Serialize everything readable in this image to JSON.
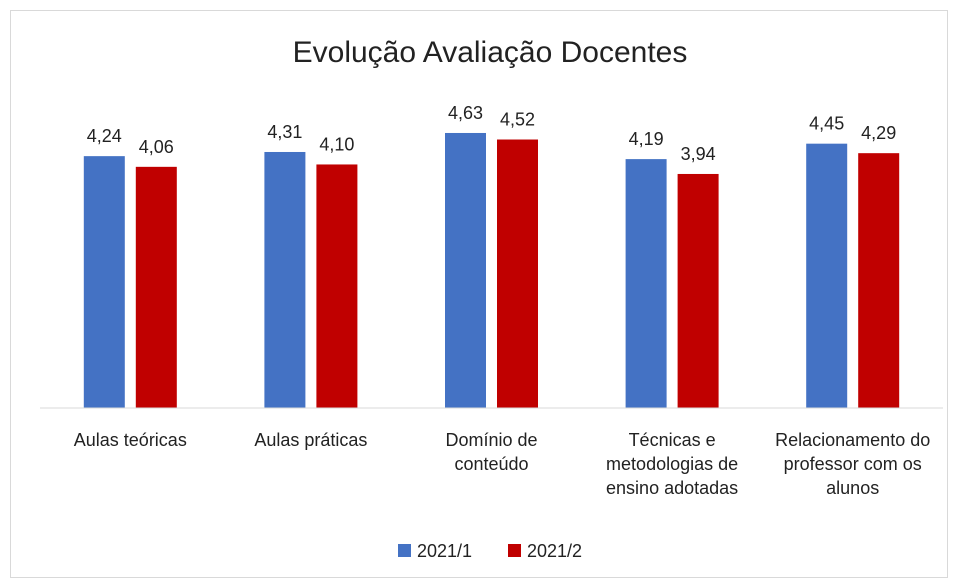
{
  "chart_data": {
    "type": "bar",
    "title": "Evolução Avaliação Docentes",
    "categories": [
      "Aulas teóricas",
      "Aulas práticas",
      "Domínio de conteúdo",
      "Técnicas e metodologias de ensino adotadas",
      "Relacionamento do professor com os alunos"
    ],
    "series": [
      {
        "name": "2021/1",
        "color": "#4472c4",
        "values": [
          4.24,
          4.31,
          4.63,
          4.19,
          4.45
        ],
        "value_labels": [
          "4,24",
          "4,31",
          "4,63",
          "4,19",
          "4,45"
        ]
      },
      {
        "name": "2021/2",
        "color": "#c00000",
        "values": [
          4.06,
          4.1,
          4.52,
          3.94,
          4.29
        ],
        "value_labels": [
          "4,06",
          "4,10",
          "4,52",
          "3,94",
          "4,29"
        ]
      }
    ],
    "ylim": [
      0,
      5
    ],
    "legend": "bottom"
  }
}
